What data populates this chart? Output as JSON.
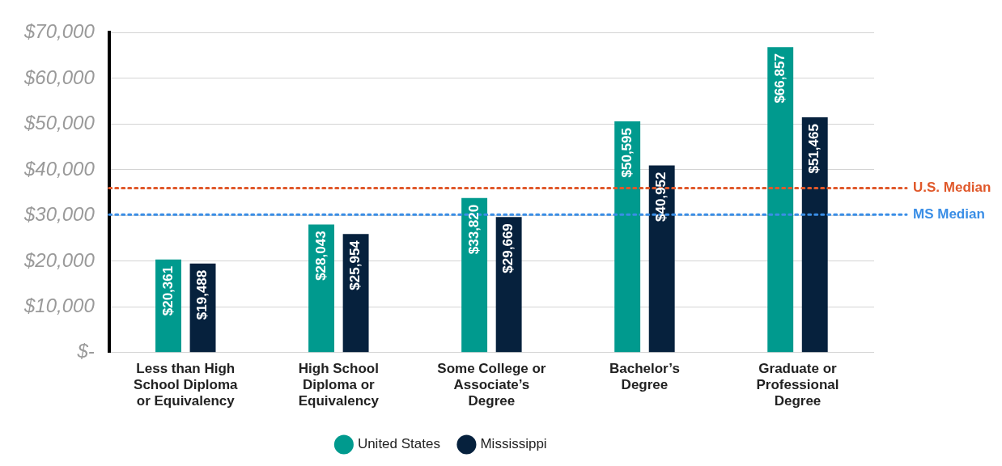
{
  "chart_data": {
    "type": "bar",
    "categories": [
      "Less than High School Diploma or Equivalency",
      "High School Diploma or Equivalency",
      "Some College or Associate’s Degree",
      "Bachelor’s Degree",
      "Graduate or Professional Degree"
    ],
    "series": [
      {
        "name": "United States",
        "color": "#009a8e",
        "values": [
          20361,
          28043,
          33820,
          50595,
          66857
        ],
        "value_labels": [
          "$20,361",
          "$28,043",
          "$33,820",
          "$50,595",
          "$66,857"
        ]
      },
      {
        "name": "Mississippi",
        "color": "#06213d",
        "values": [
          19488,
          25954,
          29669,
          40952,
          51465
        ],
        "value_labels": [
          "$19,488",
          "$25,954",
          "$29,669",
          "$40,952",
          "$51,465"
        ]
      }
    ],
    "ylim": [
      0,
      70000
    ],
    "yticks": [
      {
        "value": 0,
        "label": "$-"
      },
      {
        "value": 10000,
        "label": "$10,000"
      },
      {
        "value": 20000,
        "label": "$20,000"
      },
      {
        "value": 30000,
        "label": "$30,000"
      },
      {
        "value": 40000,
        "label": "$40,000"
      },
      {
        "value": 50000,
        "label": "$50,000"
      },
      {
        "value": 60000,
        "label": "$60,000"
      },
      {
        "value": 70000,
        "label": "$70,000"
      }
    ],
    "ref_lines": [
      {
        "axis": "y",
        "value": 36000,
        "label": "U.S. Median",
        "color": "#e0582a",
        "line_style": "dotted"
      },
      {
        "axis": "y",
        "value": 30200,
        "label": "MS Median",
        "color": "#3a8ee6",
        "line_style": "dotted"
      }
    ],
    "grid": "y",
    "legend": "bottom"
  }
}
